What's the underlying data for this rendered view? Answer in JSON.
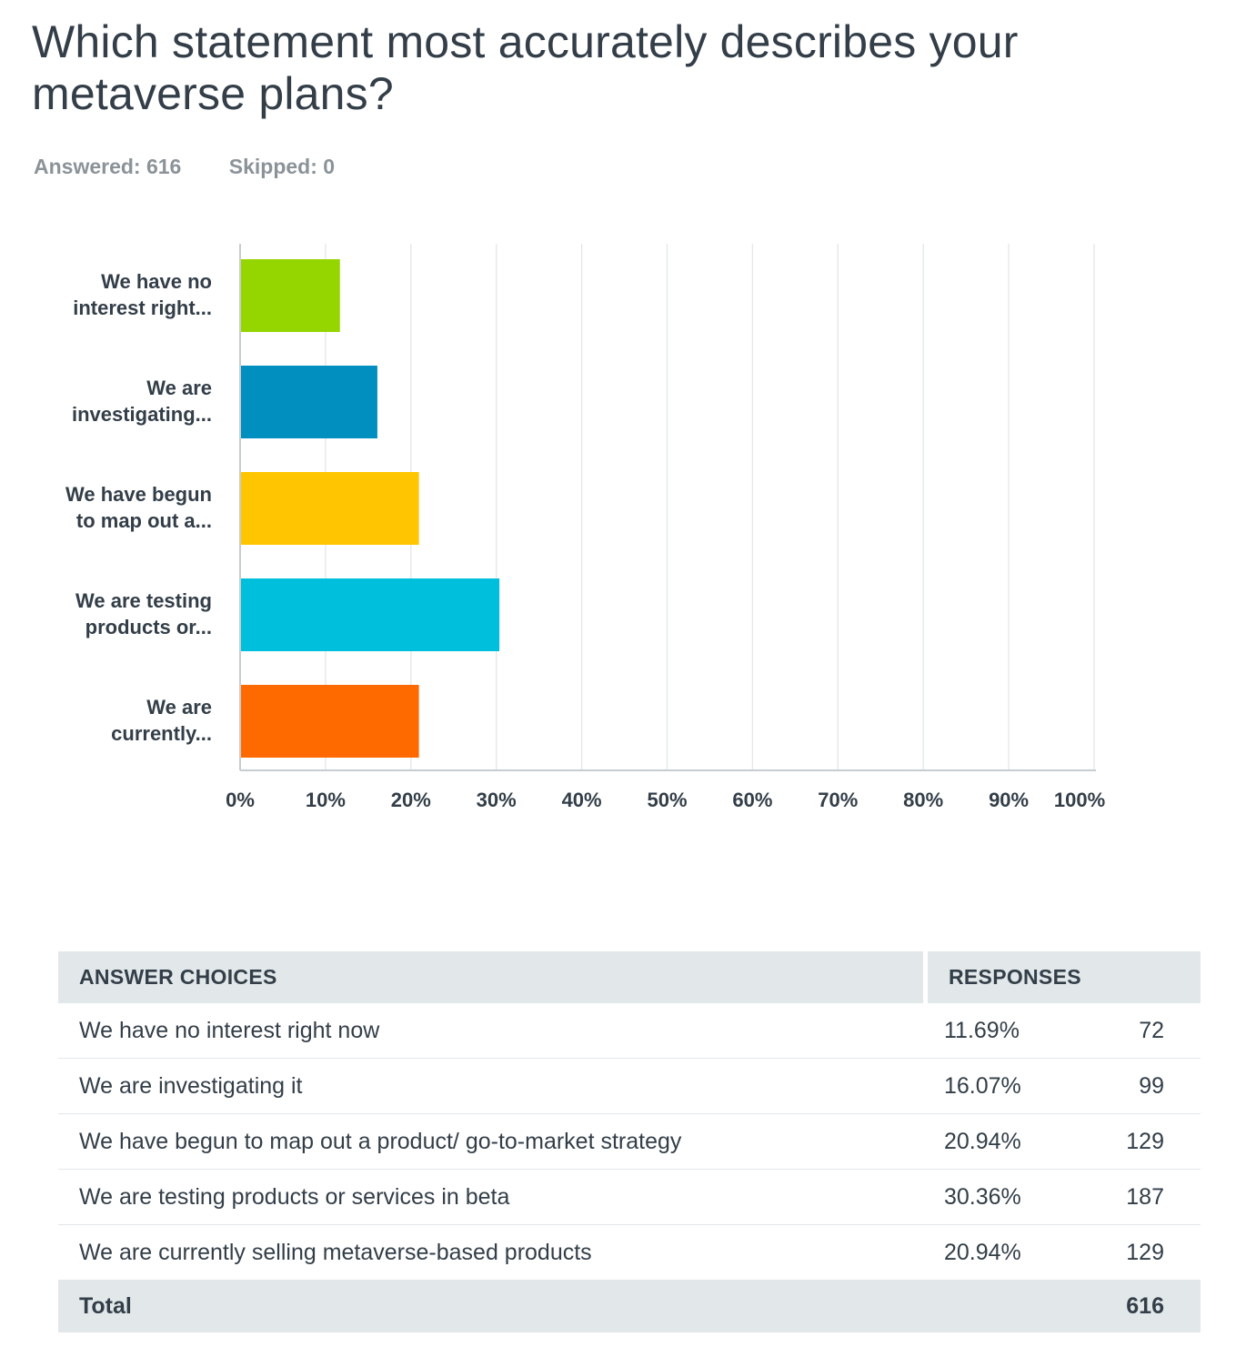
{
  "header": {
    "title": "Which statement most accurately describes your metaverse plans?",
    "answered": "Answered: 616",
    "skipped": "Skipped: 0"
  },
  "chart_data": {
    "type": "bar",
    "orientation": "horizontal",
    "categories": [
      [
        "We have no",
        "interest right..."
      ],
      [
        "We are",
        "investigating..."
      ],
      [
        "We have begun",
        "to map out a..."
      ],
      [
        "We are testing",
        "products or..."
      ],
      [
        "We are",
        "currently..."
      ]
    ],
    "values": [
      11.69,
      16.07,
      20.94,
      30.36,
      20.94
    ],
    "colors": [
      "#96d600",
      "#008fbe",
      "#ffc600",
      "#00bfdc",
      "#ff6a00"
    ],
    "xlim": [
      0,
      100
    ],
    "ticks": [
      "0%",
      "10%",
      "20%",
      "30%",
      "40%",
      "50%",
      "60%",
      "70%",
      "80%",
      "90%",
      "100%"
    ],
    "grid": true,
    "legend": "none"
  },
  "table": {
    "headers": [
      "ANSWER CHOICES",
      "RESPONSES"
    ],
    "rows": [
      {
        "choice": "We have no interest right now",
        "percent": "11.69%",
        "count": "72"
      },
      {
        "choice": "We are investigating it",
        "percent": "16.07%",
        "count": "99"
      },
      {
        "choice": "We have begun to map out a product/ go-to-market strategy",
        "percent": "20.94%",
        "count": "129"
      },
      {
        "choice": "We are testing products or services in beta",
        "percent": "30.36%",
        "count": "187"
      },
      {
        "choice": "We are currently selling metaverse-based products",
        "percent": "20.94%",
        "count": "129"
      }
    ],
    "total_label": "Total",
    "total_count": "616"
  }
}
